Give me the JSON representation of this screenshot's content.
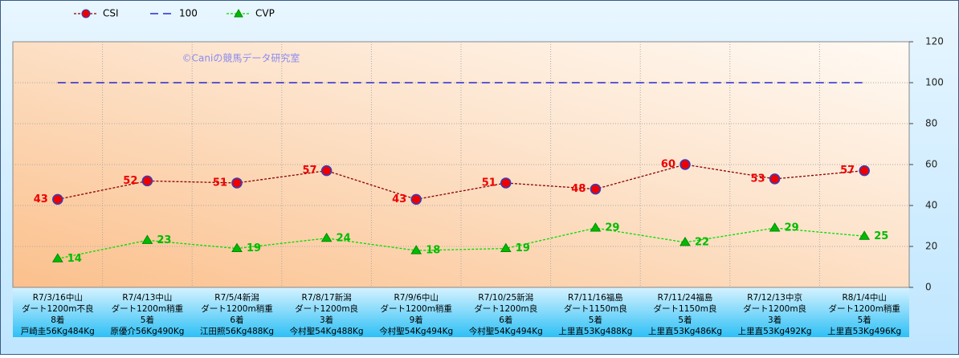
{
  "chart_data": {
    "type": "line",
    "annotation": "©Caniの競馬データ研究室",
    "categories": [
      [
        "R7/3/16中山",
        "ダート1200m不良",
        "8着",
        "戸崎圭56Kg484Kg"
      ],
      [
        "R7/4/13中山",
        "ダート1200m稍重",
        "5着",
        "原優介56Kg490Kg"
      ],
      [
        "R7/5/4新潟",
        "ダート1200m稍重",
        "6着",
        "江田照56Kg488Kg"
      ],
      [
        "R7/8/17新潟",
        "ダート1200m良",
        "3着",
        "今村聖54Kg488Kg"
      ],
      [
        "R7/9/6中山",
        "ダート1200m稍重",
        "9着",
        "今村聖54Kg494Kg"
      ],
      [
        "R7/10/25新潟",
        "ダート1200m良",
        "6着",
        "今村聖54Kg494Kg"
      ],
      [
        "R7/11/16福島",
        "ダート1150m良",
        "5着",
        "上里直53Kg488Kg"
      ],
      [
        "R7/11/24福島",
        "ダート1150m良",
        "5着",
        "上里直53Kg486Kg"
      ],
      [
        "R7/12/13中京",
        "ダート1200m良",
        "3着",
        "上里直53Kg492Kg"
      ],
      [
        "R8/1/4中山",
        "ダート1200m稍重",
        "5着",
        "上里直53Kg496Kg"
      ]
    ],
    "series": [
      {
        "name": "CSI",
        "color": "#ee0000",
        "line_color": "#8b0000",
        "line_style": "dotted",
        "marker": "circle",
        "label_position": "left",
        "values": [
          43,
          52,
          51,
          57,
          43,
          51,
          48,
          60,
          53,
          57
        ]
      },
      {
        "name": "100",
        "color": "#0000cc",
        "line_color": "#0000cc",
        "line_style": "dashed",
        "marker": "none",
        "values": [
          100,
          100,
          100,
          100,
          100,
          100,
          100,
          100,
          100,
          100
        ]
      },
      {
        "name": "CVP",
        "color": "#00bb00",
        "line_color": "#00dd00",
        "line_style": "dotted",
        "marker": "triangle",
        "label_position": "right",
        "values": [
          14,
          23,
          19,
          24,
          18,
          19,
          29,
          22,
          29,
          25
        ]
      }
    ],
    "ylim": [
      0,
      120
    ],
    "yticks": [
      0,
      20,
      40,
      60,
      80,
      100,
      120
    ],
    "grid": true,
    "legend": "top-left"
  }
}
